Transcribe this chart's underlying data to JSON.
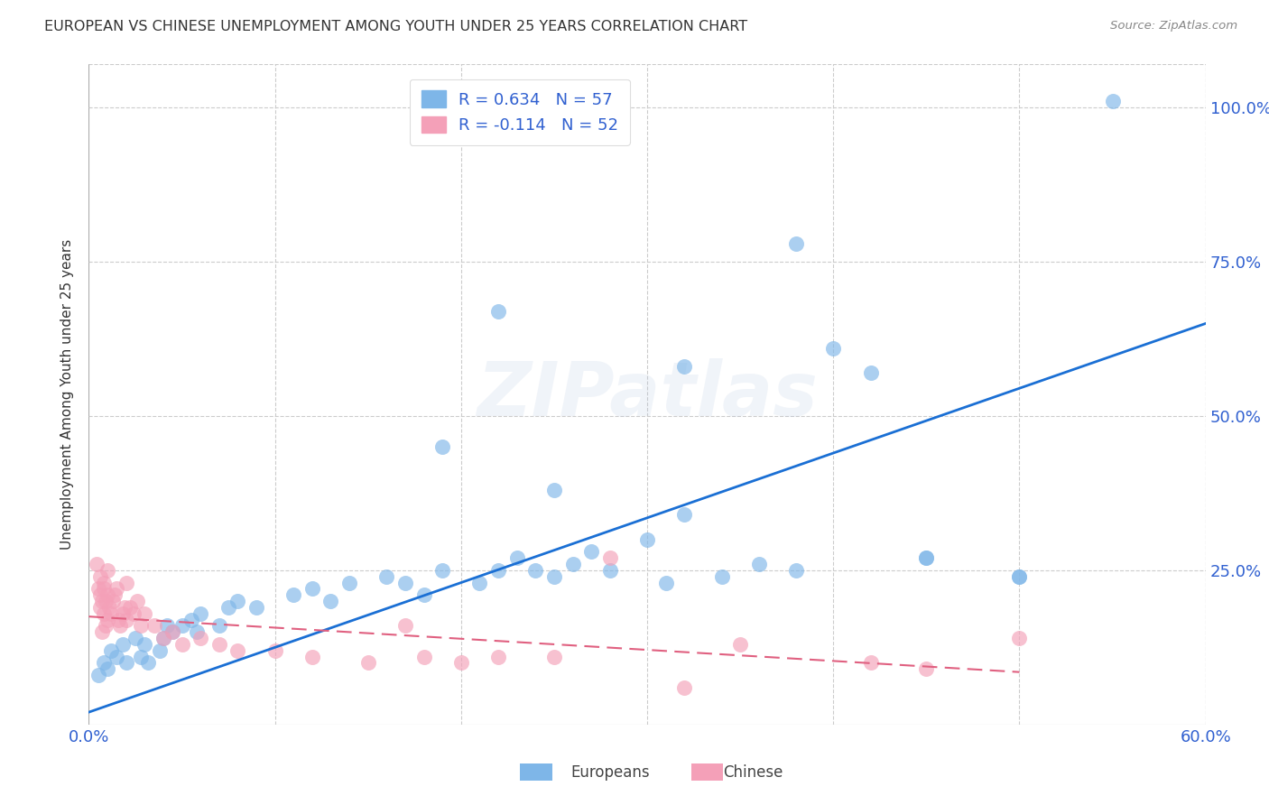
{
  "title": "EUROPEAN VS CHINESE UNEMPLOYMENT AMONG YOUTH UNDER 25 YEARS CORRELATION CHART",
  "source": "Source: ZipAtlas.com",
  "ylabel": "Unemployment Among Youth under 25 years",
  "xlim": [
    0.0,
    0.6
  ],
  "ylim": [
    0.0,
    1.07
  ],
  "xtick_positions": [
    0.0,
    0.1,
    0.2,
    0.3,
    0.4,
    0.5,
    0.6
  ],
  "xtick_labels": [
    "0.0%",
    "",
    "",
    "",
    "",
    "",
    "60.0%"
  ],
  "ytick_positions": [
    0.0,
    0.25,
    0.5,
    0.75,
    1.0
  ],
  "ytick_labels": [
    "",
    "25.0%",
    "50.0%",
    "75.0%",
    "100.0%"
  ],
  "legend_R_european": "R = 0.634",
  "legend_N_european": "N = 57",
  "legend_R_chinese": "R = -0.114",
  "legend_N_chinese": "N = 52",
  "european_color": "#7EB6E8",
  "chinese_color": "#F4A0B8",
  "trend_european_color": "#1A6FD4",
  "trend_chinese_color": "#E06080",
  "background_color": "#FFFFFF",
  "grid_color": "#CCCCCC",
  "watermark": "ZIPatlas",
  "eu_trend_x0": 0.0,
  "eu_trend_y0": 0.02,
  "eu_trend_x1": 0.6,
  "eu_trend_y1": 0.65,
  "ch_trend_x0": 0.0,
  "ch_trend_y0": 0.175,
  "ch_trend_x1": 0.5,
  "ch_trend_y1": 0.085
}
